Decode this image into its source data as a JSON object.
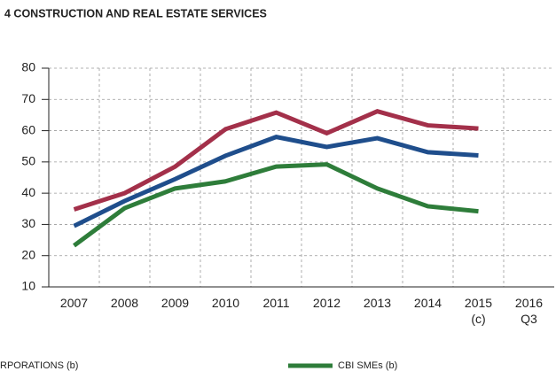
{
  "chart_data": {
    "type": "line",
    "title": "4 CONSTRUCTION AND REAL ESTATE SERVICES",
    "categories": [
      "2007",
      "2008",
      "2009",
      "2010",
      "2011",
      "2012",
      "2013",
      "2014",
      "2015 (c)",
      "2016 Q3"
    ],
    "series": [
      {
        "color": "#a3304a",
        "values": [
          34.8,
          40,
          48.5,
          60.5,
          65.8,
          59.2,
          66.2,
          61.7,
          60.7,
          null
        ]
      },
      {
        "name": "RPORATIONS (b)",
        "color": "#1f4e8c",
        "values": [
          29.5,
          37.5,
          44.5,
          52,
          58,
          54.8,
          57.6,
          53.1,
          52.1,
          null
        ]
      },
      {
        "name": "CBI SMEs (b)",
        "color": "#2e7d3a",
        "values": [
          23.2,
          35.2,
          41.5,
          43.8,
          48.5,
          49.2,
          41.5,
          35.8,
          34.2,
          null
        ]
      }
    ],
    "ylim": [
      10,
      80
    ],
    "yticks": [
      10,
      20,
      30,
      40,
      50,
      60,
      70,
      80
    ],
    "grid": true
  }
}
